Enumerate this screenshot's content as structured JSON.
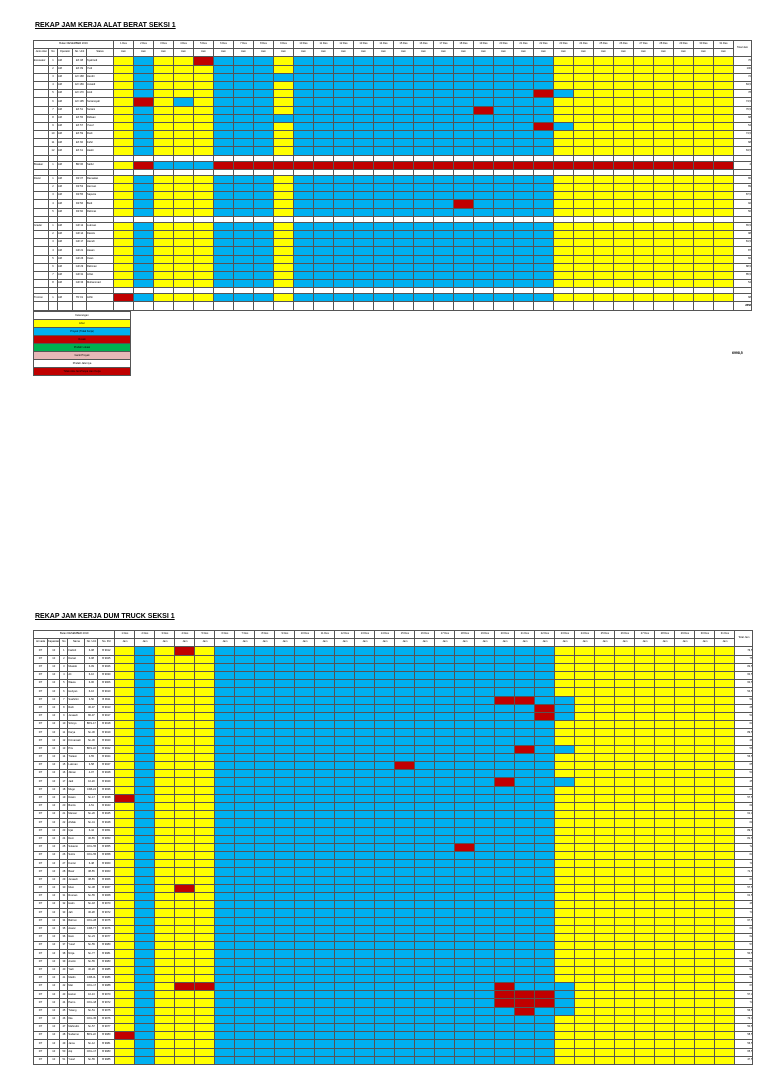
{
  "doc1": {
    "title": "REKAP JAM KERJA ALAT BERAT SEKSI 1",
    "month_label": "Bulan DESEMBER 2019",
    "header": {
      "jenis": "Jenis Alat",
      "no": "No",
      "operator": "Operator",
      "no_unit": "No. Unit",
      "status": "Status",
      "total": "Total Jam"
    },
    "days": [
      "1 Des",
      "2 Des",
      "3 Des",
      "4 Des",
      "5 Des",
      "6 Des",
      "7 Des",
      "8 Des",
      "9 Des",
      "10 Des",
      "11 Des",
      "12 Des",
      "13 Des",
      "14 Des",
      "15 Des",
      "16 Des",
      "17 Des",
      "18 Des",
      "19 Des",
      "20 Des",
      "21 Des",
      "22 Des",
      "23 Des",
      "24 Des",
      "25 Des",
      "26 Des",
      "27 Des",
      "28 Des",
      "29 Des",
      "30 Des",
      "31 Des"
    ],
    "unit": "Jam",
    "rows": [
      {
        "jenis": "Excavator",
        "no": "1",
        "op": "AM",
        "unit": "EX 08",
        "status": "Syahrudi",
        "total": "76",
        "pat": "gybyyrbbbybbbbbbbbbbbbbyyyyyyyyy"
      },
      {
        "jenis": "",
        "no": "2",
        "op": "AM",
        "unit": "EX 09",
        "status": "Yudi",
        "total": "100",
        "pat": "gybyyybbbybbbbbbbbbbbbbyyyyyyyyy"
      },
      {
        "jenis": "",
        "no": "3",
        "op": "AM",
        "unit": "EX 168",
        "status": "Hendri",
        "total": "72",
        "pat": "gybyyybbbbbbbbbbbbbbbbbyyyyyyyyy"
      },
      {
        "jenis": "",
        "no": "4",
        "op": "AM",
        "unit": "EX 169",
        "status": "Junaidi",
        "total": "84,5",
        "pat": "gybyyybbbybbbbbbbbbbbbbyyyyyyyyy"
      },
      {
        "jenis": "",
        "no": "5",
        "op": "AM",
        "unit": "EX 170",
        "status": "Andi",
        "total": "78",
        "pat": "gybyyybbbybbbbbbbbbbbbrbyyyyyyyyy"
      },
      {
        "jenis": "",
        "no": "6",
        "op": "AM",
        "unit": "EX 195",
        "status": "Suriansyah",
        "total": "74,5",
        "pat": "gyrybybbbybbbbbbbbbbbbbyyyyyyyyy"
      },
      {
        "jenis": "",
        "no": "7",
        "op": "AM",
        "unit": "EX 51",
        "status": "Suriani",
        "total": "76,5",
        "pat": "gybyyybbbybbbbbbbbbrbbbyyyyyyyyy"
      },
      {
        "jenis": "",
        "no": "8",
        "op": "AM",
        "unit": "EX 55",
        "status": "Ridwan",
        "total": "68",
        "pat": "gybyyybbbbbbbbbbbbbbbbbyyyyyyyyy"
      },
      {
        "jenis": "",
        "no": "9",
        "op": "AM",
        "unit": "EX 57",
        "status": "Yusuf",
        "total": "54",
        "pat": "gybyyybbbybbbbbbbbbbbbrbyyyyyyyyy"
      },
      {
        "jenis": "",
        "no": "10",
        "op": "AM",
        "unit": "EX 59",
        "status": "Rudi",
        "total": "74,5",
        "pat": "gybyyybbbybbbbbbbbbbbbbyyyyyyyyy"
      },
      {
        "jenis": "",
        "no": "11",
        "op": "AM",
        "unit": "EX 60",
        "status": "Fahri",
        "total": "68",
        "pat": "gybyyybbbybbbbbbbbbbbbbyyyyyyyyy"
      },
      {
        "jenis": "",
        "no": "12",
        "op": "AM",
        "unit": "EX 61",
        "status": "Hasbi",
        "total": "63,5",
        "pat": "gybyyybbbybbbbbbbbbbbbbyyyyyyyyy"
      },
      {
        "gap": true
      },
      {
        "jenis": "Breaker",
        "no": "1",
        "op": "AM",
        "unit": "BR 06",
        "status": "Saiful",
        "total": "4",
        "pat": "gyrbbbrrrrrrrrrrrrrrrrrrrrrrrrrr"
      },
      {
        "gap": true
      },
      {
        "jenis": "Dozer",
        "no": "1",
        "op": "AM",
        "unit": "DZ 37",
        "status": "Ramadan",
        "total": "86",
        "pat": "gybyyybbbybbbbbbbbbbbbbyyyyyyyyy"
      },
      {
        "jenis": "",
        "no": "2",
        "op": "AM",
        "unit": "DZ 53",
        "status": "Herman",
        "total": "89",
        "pat": "gybyyybbbybbbbbbbbbbbbbyyyyyyyyy"
      },
      {
        "jenis": "",
        "no": "3",
        "op": "AM",
        "unit": "DZ 55",
        "status": "Saputra",
        "total": "87,5",
        "pat": "gybyyybbbybbbbbbbbbbbbbyyyyyyyyy"
      },
      {
        "jenis": "",
        "no": "4",
        "op": "AM",
        "unit": "DZ 56",
        "status": "Budi",
        "total": "92",
        "pat": "gybyyybbbybbbbbbbbrbbbbyyyyyyyyy"
      },
      {
        "jenis": "",
        "no": "5",
        "op": "AM",
        "unit": "DZ 60",
        "status": "Rahmat",
        "total": "56",
        "pat": "gybyyybbbybbbbbbbbbbbbbyyyyyyyyy"
      },
      {
        "gap": true
      },
      {
        "jenis": "Grader",
        "no": "1",
        "op": "AM",
        "unit": "GR 12",
        "status": "Lukman",
        "total": "65,5",
        "pat": "gybyyybbbybbbbbbbbbbbbbyyyyyyyyy"
      },
      {
        "jenis": "",
        "no": "2",
        "op": "AM",
        "unit": "GR 14",
        "status": "Darwis",
        "total": "98",
        "pat": "gybyyybbbybbbbbbbbbbbbbyyyyyyyyy"
      },
      {
        "jenis": "",
        "no": "3",
        "op": "AM",
        "unit": "GR 17",
        "status": "Hamdi",
        "total": "81,5",
        "pat": "gybyyybbbybbbbbbbbbbbbbyyyyyyyyy"
      },
      {
        "jenis": "",
        "no": "4",
        "op": "AM",
        "unit": "GR 21",
        "status": "Hasan",
        "total": "87",
        "pat": "gybyyybbbybbbbbbbbbbbbbyyyyyyyyy"
      },
      {
        "jenis": "",
        "no": "5",
        "op": "AM",
        "unit": "GR 26",
        "status": "Irwan",
        "total": "82",
        "pat": "gybyyybbbybbbbbbbbbbbbbyyyyyyyyy"
      },
      {
        "jenis": "",
        "no": "6",
        "op": "AM",
        "unit": "GR 29",
        "status": "Rahman",
        "total": "88,5",
        "pat": "gybyyybbbybbbbbbbbbbbbbyyyyyyyyy"
      },
      {
        "jenis": "",
        "no": "7",
        "op": "AM",
        "unit": "GR 31",
        "status": "Arfan",
        "total": "85,5",
        "pat": "gybyyybbbybbbbbbbbbbbbbyyyyyyyyy"
      },
      {
        "jenis": "",
        "no": "8",
        "op": "AM",
        "unit": "GR 33",
        "status": "Muhammad",
        "total": "54",
        "pat": "gybyyybbbybbbbbbbbbbbbbyyyyyyyyy"
      },
      {
        "gap": true
      },
      {
        "jenis": "Tronton",
        "no": "1",
        "op": "AM",
        "unit": "TR 01",
        "status": "Arifin",
        "total": "68",
        "pat": "grbyyybbbybbbbbbbbbbbbbyyyyyyyyy"
      }
    ],
    "grand_total": "2858"
  },
  "legend": {
    "title": "Keterangan",
    "items": [
      "Libur",
      "Proyek (Tidak Kerja)",
      "Rusak",
      "Pindah Lokasi",
      "Ganti Proyek",
      "Pindah Jalurnya",
      "Tidak Ada Jam/Tanpa Jam Kerja"
    ]
  },
  "grand_side_total": "6998,5",
  "doc2": {
    "title": "REKAP JAM KERJA DUM TRUCK SEKSI 1",
    "month_label": "Bulan DESEMBER 2019",
    "header": {
      "armada": "Armada",
      "kapasitas": "Kapasitas",
      "no": "No",
      "nama": "Nama",
      "no_unit": "No. Unit",
      "no_pol": "No. Pol",
      "total": "Total Jam"
    },
    "rows": [
      {
        "armada": "DT",
        "kap": "10",
        "no": "1",
        "nama": "Fadmil",
        "unit": "6-08",
        "pol": "B 9912",
        "total": "76,5",
        "pat": "gybyrybbbbbbbbbbbbbbbbbyyyyyyyyy"
      },
      {
        "armada": "DT",
        "kap": "10",
        "no": "2",
        "nama": "Darsel",
        "unit": "6-08",
        "pol": "B 9925",
        "total": "75",
        "pat": "gybyyybbbbbbbbbbbbbbbbbyyyyyyyyy"
      },
      {
        "armada": "DT",
        "kap": "10",
        "no": "3",
        "nama": "Muatdo",
        "unit": "6-09",
        "pol": "B 9926",
        "total": "82,5",
        "pat": "gybyyybbbbbbbbbbbbbbbbbyyyyyyyyy"
      },
      {
        "armada": "DT",
        "kap": "10",
        "no": "4",
        "nama": "Ali",
        "unit": "6-10",
        "pol": "B 9930",
        "total": "60,5",
        "pat": "gybyyybbbbbbbbbbbbbbbbbyyyyyyyyy"
      },
      {
        "armada": "DT",
        "kap": "10",
        "no": "5",
        "nama": "Wawa",
        "unit": "6-06",
        "pol": "B 9906",
        "total": "60,5",
        "pat": "gybyyybbbbbbbbbbbbbbbbbyyyyyyyyy"
      },
      {
        "armada": "DT",
        "kap": "10",
        "no": "6",
        "nama": "Herlyan",
        "unit": "6-16",
        "pol": "B 9910",
        "total": "54,5",
        "pat": "gybyyybbbbbbbbbbbbbbbbbyyyyyyyyy"
      },
      {
        "armada": "DT",
        "kap": "10",
        "no": "7",
        "nama": "Suahrtini",
        "unit": "3-50",
        "pol": "B 9911",
        "total": "59",
        "pat": "gybyyybbbbbbbbbbbbbbrrbbyyyyyyyy"
      },
      {
        "armada": "DT",
        "kap": "10",
        "no": "8",
        "nama": "Rahi",
        "unit": "30-07",
        "pol": "B 9913",
        "total": "28",
        "pat": "gybyyybbbbbbbbbbbbbbbbrbyyyyyyyy"
      },
      {
        "armada": "DT",
        "kap": "10",
        "no": "9",
        "nama": "Junaedi",
        "unit": "80-07",
        "pol": "B 9917",
        "total": "54",
        "pat": "gybyyybbbbbbbbbbbbbbbbrbyyyyyyyy"
      },
      {
        "armada": "DT",
        "kap": "10",
        "no": "10",
        "nama": "Sirtoyo",
        "unit": "BKS-17",
        "pol": "B 9918",
        "total": "64",
        "pat": "gybyyybbbbbbbbbbbbbbbbbyyyyyyyyy"
      },
      {
        "armada": "DT",
        "kap": "10",
        "no": "11",
        "nama": "Karya",
        "unit": "Sn-30",
        "pol": "B 9919",
        "total": "89,5",
        "pat": "gybyyybbbbbbbbbbbbbbbbbyyyyyyyyy"
      },
      {
        "armada": "DT",
        "kap": "10",
        "no": "12",
        "nama": "Kirmansah",
        "unit": "Sn-30",
        "pol": "B 9920",
        "total": "46",
        "pat": "gybyyybbbbbbbbbbbbbbbbbyyyyyyyyy"
      },
      {
        "armada": "DT",
        "kap": "10",
        "no": "13",
        "nama": "Pris",
        "unit": "BKS-22",
        "pol": "B 9922",
        "total": "56",
        "pat": "gybyyybbbbbbbbbbbbbbbrbbyyyyyyyy"
      },
      {
        "armada": "DT",
        "kap": "10",
        "no": "14",
        "nama": "Trelaon",
        "unit": "3-55",
        "pol": "B 9924",
        "total": "56,5",
        "pat": "gybyyybbbbbbbbbbbbbbbbbyyyyyyyyy"
      },
      {
        "armada": "DT",
        "kap": "10",
        "no": "15",
        "nama": "Lukman",
        "unit": "3-58",
        "pol": "B 9927",
        "total": "65",
        "pat": "gybyyybbbbbbbbbrbbbbbbbyyyyyyyyy"
      },
      {
        "armada": "DT",
        "kap": "10",
        "no": "16",
        "nama": "Jiknan",
        "unit": "4-07",
        "pol": "B 9928",
        "total": "54",
        "pat": "gybyyybbbbbbbbbbbbbbbbbyyyyyyyyy"
      },
      {
        "armada": "DT",
        "kap": "10",
        "no": "17",
        "nama": "Jadi",
        "unit": "10-20",
        "pol": "B 9929",
        "total": "45",
        "pat": "gybyyybbbbbbbbbbbbbbrbbbyyyyyyyy"
      },
      {
        "armada": "DT",
        "kap": "10",
        "no": "18",
        "nama": "Mugo",
        "unit": "CKB-24",
        "pol": "B 9936",
        "total": "67",
        "pat": "gybyyybbbbbbbbbbbbbbbbbyyyyyyyyy"
      },
      {
        "armada": "DT",
        "kap": "10",
        "no": "19",
        "nama": "Dawin",
        "unit": "Sn-17",
        "pol": "B 9938",
        "total": "57,5",
        "pat": "grbyyybbbbbbbbbbbbbbbbbyyyyyyyyy"
      },
      {
        "armada": "DT",
        "kap": "10",
        "no": "20",
        "nama": "Buntis",
        "unit": "4-51",
        "pol": "B 9943",
        "total": "61",
        "pat": "gybyyybbbbbbbbbbbbbbbbbyyyyyyyyy"
      },
      {
        "armada": "DT",
        "kap": "10",
        "no": "21",
        "nama": "Mansur",
        "unit": "Sn-20",
        "pol": "B 9945",
        "total": "61,3",
        "pat": "gybyyybbbbbbbbbbbbbbbbbyyyyyyyyy"
      },
      {
        "armada": "DT",
        "kap": "10",
        "no": "22",
        "nama": "Ahdak",
        "unit": "Sn-41",
        "pol": "B 9948",
        "total": "61",
        "pat": "gybyyybbbbbbbbbbbbbbbbbyyyyyyyyy"
      },
      {
        "armada": "DT",
        "kap": "10",
        "no": "23",
        "nama": "Ujat",
        "unit": "6-44",
        "pol": "B 9951",
        "total": "89,5",
        "pat": "gybyyybbbbbbbbbbbbbbbbbyyyyyyyyy"
      },
      {
        "armada": "DT",
        "kap": "10",
        "no": "24",
        "nama": "Deni",
        "unit": "30-55",
        "pol": "B 9953",
        "total": "81,5",
        "pat": "gybyyybbbbbbbbbbbbbbbbbyyyyyyyyy"
      },
      {
        "armada": "DT",
        "kap": "10",
        "no": "25",
        "nama": "Sukanto",
        "unit": "CKG-55",
        "pol": "B 9955",
        "total": "72",
        "pat": "gybyyybbbbbbbbbbbbrbbbbyyyyyyyyy"
      },
      {
        "armada": "DT",
        "kap": "10",
        "no": "26",
        "nama": "Sutris",
        "unit": "CKG-55",
        "pol": "B 9958",
        "total": "63",
        "pat": "gybyyybbbbbbbbbbbbbbbbbyyyyyyyyy"
      },
      {
        "armada": "DT",
        "kap": "10",
        "no": "27",
        "nama": "Kuntur",
        "unit": "6-48",
        "pol": "B 9960",
        "total": "70",
        "pat": "gybyyybbbbbbbbbbbbbbbbbyyyyyyyyy"
      },
      {
        "armada": "DT",
        "kap": "10",
        "no": "28",
        "nama": "Basir",
        "unit": "38-55",
        "pol": "B 9963",
        "total": "71,5",
        "pat": "gybyyybbbbbbbbbbbbbbbbbyyyyyyyyy"
      },
      {
        "armada": "DT",
        "kap": "10",
        "no": "29",
        "nama": "Junaedi",
        "unit": "38-55",
        "pol": "B 9966",
        "total": "67",
        "pat": "gybyyybbbbbbbbbbbbbbbbbyyyyyyyyy"
      },
      {
        "armada": "DT",
        "kap": "10",
        "no": "30",
        "nama": "Musi",
        "unit": "Sn-38",
        "pol": "B 9967",
        "total": "57,5",
        "pat": "gybyrybbbbbbbbbbbbbbbbbyyyyyyyyy"
      },
      {
        "armada": "DT",
        "kap": "10",
        "no": "31",
        "nama": "Rusnan",
        "unit": "Sn-55",
        "pol": "B 9968",
        "total": "61,5",
        "pat": "gybyyybbbbbbbbbbbbbbbbbyyyyyyyyy"
      },
      {
        "armada": "DT",
        "kap": "10",
        "no": "32",
        "nama": "Hatin",
        "unit": "Sn-18",
        "pol": "B 9970",
        "total": "46",
        "pat": "gybyyybbbbbbbbbbbbbbbbbyyyyyyyyy"
      },
      {
        "armada": "DT",
        "kap": "10",
        "no": "33",
        "nama": "Jafi",
        "unit": "30-28",
        "pol": "B 9972",
        "total": "70",
        "pat": "gybyyybbbbbbbbbbbbbbbbbyyyyyyyyy"
      },
      {
        "armada": "DT",
        "kap": "10",
        "no": "34",
        "nama": "Bahrun",
        "unit": "CKG-28",
        "pol": "B 9975",
        "total": "67,5",
        "pat": "gybyyybbbbbbbbbbbbbbbbbyyyyyyyyy"
      },
      {
        "armada": "DT",
        "kap": "10",
        "no": "35",
        "nama": "Aswar",
        "unit": "CKB-77",
        "pol": "B 9976",
        "total": "60",
        "pat": "gybyyybbbbbbbbbbbbbbbbbyyyyyyyyy"
      },
      {
        "armada": "DT",
        "kap": "10",
        "no": "36",
        "nama": "Ikam",
        "unit": "Sn-23",
        "pol": "B 9977",
        "total": "62",
        "pat": "gybyyybbbbbbbbbbbbbbbbbyyyyyyyyy"
      },
      {
        "armada": "DT",
        "kap": "10",
        "no": "37",
        "nama": "Yusuf",
        "unit": "Sn-55",
        "pol": "B 9980",
        "total": "57",
        "pat": "gybyyybbbbbbbbbbbbbbbbbyyyyyyyyy"
      },
      {
        "armada": "DT",
        "kap": "10",
        "no": "38",
        "nama": "Ninja",
        "unit": "Sn-77",
        "pol": "B 9981",
        "total": "50,5",
        "pat": "gybyyybbbbbbbbbbbbbbbbbyyyyyyyyy"
      },
      {
        "armada": "DT",
        "kap": "10",
        "no": "39",
        "nama": "Anotin",
        "unit": "Sn-55",
        "pol": "B 9983",
        "total": "57",
        "pat": "gybyyybbbbbbbbbbbbbbbbbyyyyyyyyy"
      },
      {
        "armada": "DT",
        "kap": "10",
        "no": "40",
        "nama": "Yadi",
        "unit": "30-28",
        "pol": "B 9985",
        "total": "54",
        "pat": "gybyyybbbbbbbbbbbbbbbbbyyyyyyyyy"
      },
      {
        "armada": "DT",
        "kap": "10",
        "no": "41",
        "nama": "Madin",
        "unit": "CKB-3L",
        "pol": "B 9986",
        "total": "54",
        "pat": "gybyyybbbbbbbbbbbbbbbbbyyyyyyyyy"
      },
      {
        "armada": "DT",
        "kap": "10",
        "no": "42",
        "nama": "Mat",
        "unit": "CKG-17",
        "pol": "B 9988",
        "total": "67",
        "pat": "gybyrrbbbbbbbbbbbbbbrbbbyyyyyyyy"
      },
      {
        "armada": "DT",
        "kap": "10",
        "no": "43",
        "nama": "Hairun",
        "unit": "10-13",
        "pol": "B 9970",
        "total": "57,3",
        "pat": "gybyyybbbbbbbbbbbbbbrrrbyyyyyyyy"
      },
      {
        "armada": "DT",
        "kap": "10",
        "no": "44",
        "nama": "Parno",
        "unit": "CKG-18",
        "pol": "B 9972",
        "total": "73",
        "pat": "gybyyybbbbbbbbbbbbbbrrrbyyyyyyyy"
      },
      {
        "armada": "DT",
        "kap": "10",
        "no": "45",
        "nama": "Tutang",
        "unit": "Sn-51",
        "pol": "B 9975",
        "total": "56,5",
        "pat": "gybyyybbbbbbbbbbbbbbbrbbyyyyyyyy"
      },
      {
        "armada": "DT",
        "kap": "10",
        "no": "46",
        "nama": "Ilka",
        "unit": "CKG-35",
        "pol": "B 9976",
        "total": "73,3",
        "pat": "gybyyybbbbbbbbbbbbbbbbbyyyyyyyyy"
      },
      {
        "armada": "DT",
        "kap": "10",
        "no": "47",
        "nama": "Mahrudin",
        "unit": "Sn-57",
        "pol": "B 9977",
        "total": "50,5",
        "pat": "gybyyybbbbbbbbbbbbbbbbbyyyyyyyyy"
      },
      {
        "armada": "DT",
        "kap": "10",
        "no": "48",
        "nama": "Sudarmo",
        "unit": "BKS-22",
        "pol": "B 9980",
        "total": "58,5",
        "pat": "grbyyybbbbbbbbbbbbbbbbbyyyyyyyyy"
      },
      {
        "armada": "DT",
        "kap": "10",
        "no": "49",
        "nama": "Jama",
        "unit": "Sn-12",
        "pol": "B 9981",
        "total": "56,5",
        "pat": "gybyyybbbbbbbbbbbbbbbbbyyyyyyyyy"
      },
      {
        "armada": "DT",
        "kap": "10",
        "no": "50",
        "nama": "Aqi",
        "unit": "CKG-17",
        "pol": "B 9983",
        "total": "65,5",
        "pat": "gybyyybbbbbbbbbbbbbbbbbyyyyyyyyy"
      },
      {
        "armada": "DT",
        "kap": "10",
        "no": "51",
        "nama": "Yusuf",
        "unit": "Sn-55",
        "pol": "B 9985",
        "total": "47,5",
        "pat": "gybyyybbbbbbbbbbbbbbbbbyyyyyyyyy"
      }
    ]
  }
}
